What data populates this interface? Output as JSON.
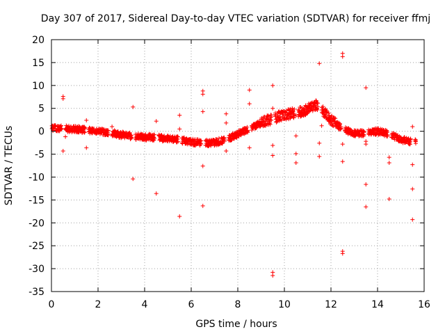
{
  "chart_data": {
    "type": "scatter",
    "title": "Day 307 of 2017, Sidereal Day-to-day VTEC variation (SDTVAR) for receiver ffmj",
    "xlabel": "GPS time / hours",
    "ylabel": "SDTVAR / TECUs",
    "xlim": [
      0,
      16
    ],
    "ylim": [
      -35,
      20
    ],
    "xticks": [
      0,
      2,
      4,
      6,
      8,
      10,
      12,
      14,
      16
    ],
    "yticks": [
      -35,
      -30,
      -25,
      -20,
      -15,
      -10,
      -5,
      0,
      5,
      10,
      15,
      20
    ],
    "grid": true,
    "marker": "plus",
    "color": "#ff0000",
    "trend": [
      [
        0.0,
        0.8
      ],
      [
        0.5,
        0.6
      ],
      [
        0.8,
        0.5
      ],
      [
        1.2,
        0.4
      ],
      [
        1.6,
        0.2
      ],
      [
        2.0,
        0.0
      ],
      [
        2.5,
        -0.3
      ],
      [
        3.0,
        -0.8
      ],
      [
        3.5,
        -1.1
      ],
      [
        4.0,
        -1.3
      ],
      [
        4.5,
        -1.4
      ],
      [
        5.0,
        -1.6
      ],
      [
        5.5,
        -1.9
      ],
      [
        6.0,
        -2.3
      ],
      [
        6.5,
        -2.6
      ],
      [
        7.0,
        -2.5
      ],
      [
        7.5,
        -1.8
      ],
      [
        8.0,
        -0.6
      ],
      [
        8.5,
        0.6
      ],
      [
        9.0,
        1.8
      ],
      [
        9.5,
        2.8
      ],
      [
        10.0,
        3.6
      ],
      [
        10.5,
        4.0
      ],
      [
        11.0,
        4.8
      ],
      [
        11.3,
        5.8
      ],
      [
        11.6,
        4.8
      ],
      [
        12.0,
        2.5
      ],
      [
        12.5,
        0.5
      ],
      [
        13.0,
        -0.5
      ],
      [
        13.5,
        -0.4
      ],
      [
        14.0,
        0.0
      ],
      [
        14.5,
        -0.6
      ],
      [
        15.0,
        -1.8
      ],
      [
        15.5,
        -2.3
      ]
    ],
    "outliers": [
      [
        0.5,
        7.6
      ],
      [
        0.5,
        7.1
      ],
      [
        0.5,
        -4.3
      ],
      [
        0.6,
        -1.2
      ],
      [
        1.5,
        2.4
      ],
      [
        1.5,
        -3.6
      ],
      [
        2.6,
        1.0
      ],
      [
        3.5,
        5.3
      ],
      [
        3.5,
        -10.4
      ],
      [
        4.5,
        2.2
      ],
      [
        4.5,
        -13.6
      ],
      [
        5.5,
        3.5
      ],
      [
        5.5,
        0.5
      ],
      [
        5.5,
        -18.6
      ],
      [
        6.5,
        8.8
      ],
      [
        6.5,
        8.1
      ],
      [
        6.5,
        4.3
      ],
      [
        6.5,
        -7.6
      ],
      [
        6.5,
        -16.3
      ],
      [
        7.5,
        3.8
      ],
      [
        7.5,
        1.8
      ],
      [
        7.5,
        -4.3
      ],
      [
        8.5,
        9.0
      ],
      [
        8.5,
        6.0
      ],
      [
        8.5,
        -3.6
      ],
      [
        9.5,
        10.0
      ],
      [
        9.5,
        5.0
      ],
      [
        9.5,
        -3.1
      ],
      [
        9.5,
        -5.3
      ],
      [
        9.5,
        -30.8
      ],
      [
        9.5,
        -31.5
      ],
      [
        10.5,
        -1.0
      ],
      [
        10.5,
        -4.9
      ],
      [
        10.5,
        -6.9
      ],
      [
        10.5,
        3.5
      ],
      [
        11.5,
        14.8
      ],
      [
        11.5,
        -2.6
      ],
      [
        11.5,
        -5.5
      ],
      [
        11.6,
        1.2
      ],
      [
        12.5,
        17.0
      ],
      [
        12.5,
        16.3
      ],
      [
        12.5,
        -2.8
      ],
      [
        12.5,
        -6.6
      ],
      [
        12.5,
        -26.2
      ],
      [
        12.5,
        -26.7
      ],
      [
        13.5,
        9.5
      ],
      [
        13.5,
        -2.2
      ],
      [
        13.5,
        -2.8
      ],
      [
        13.5,
        -11.6
      ],
      [
        13.5,
        -16.5
      ],
      [
        14.5,
        -5.7
      ],
      [
        14.5,
        -6.9
      ],
      [
        14.5,
        -14.8
      ],
      [
        15.5,
        1.0
      ],
      [
        15.5,
        -7.3
      ],
      [
        15.5,
        -12.6
      ],
      [
        15.5,
        -19.3
      ]
    ]
  }
}
